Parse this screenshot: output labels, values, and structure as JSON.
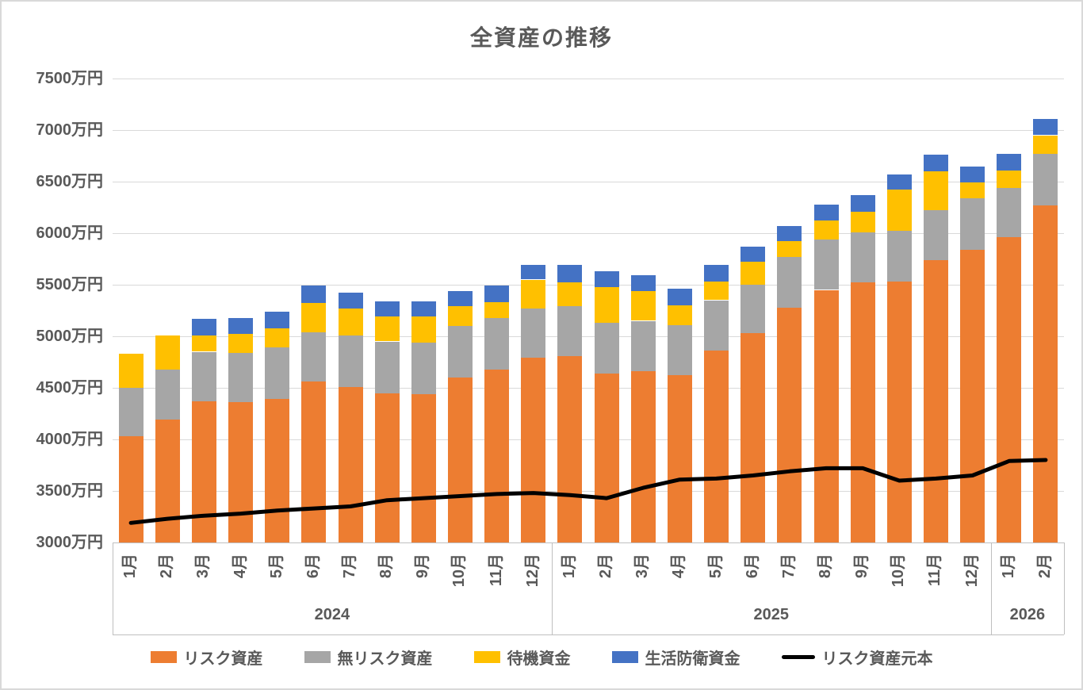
{
  "chart_data": {
    "type": "bar",
    "subtype": "stacked-bar-with-line",
    "title": "全資産の推移",
    "unit": "万円",
    "grid": true,
    "legend_position": "bottom",
    "axis": {
      "y_min": 3000,
      "y_max": 7500,
      "y_ticks": [
        {
          "value": 3000,
          "label": "3000万円"
        },
        {
          "value": 3500,
          "label": "3500万円"
        },
        {
          "value": 4000,
          "label": "4000万円"
        },
        {
          "value": 4500,
          "label": "4500万円"
        },
        {
          "value": 5000,
          "label": "5000万円"
        },
        {
          "value": 5500,
          "label": "5500万円"
        },
        {
          "value": 6000,
          "label": "6000万円"
        },
        {
          "value": 6500,
          "label": "6500万円"
        },
        {
          "value": 7000,
          "label": "7000万円"
        },
        {
          "value": 7500,
          "label": "7500万円"
        }
      ]
    },
    "month_groups": [
      {
        "year": "2024",
        "months": [
          "1月",
          "2月",
          "3月",
          "4月",
          "5月",
          "6月",
          "7月",
          "8月",
          "9月",
          "10月",
          "11月",
          "12月"
        ]
      },
      {
        "year": "2025",
        "months": [
          "1月",
          "2月",
          "3月",
          "4月",
          "5月",
          "6月",
          "7月",
          "8月",
          "9月",
          "10月",
          "11月",
          "12月"
        ]
      },
      {
        "year": "2026",
        "months": [
          "1月",
          "2月"
        ]
      }
    ],
    "series": [
      {
        "name": "リスク資産",
        "render": "bar",
        "color": "#ED7D31",
        "values": [
          4030,
          4190,
          4370,
          4360,
          4390,
          4560,
          4510,
          4450,
          4440,
          4600,
          4680,
          4790,
          4810,
          4640,
          4660,
          4620,
          4860,
          5030,
          5280,
          5450,
          5520,
          5530,
          5740,
          5840,
          5960,
          6270
        ]
      },
      {
        "name": "無リスク資産",
        "render": "bar",
        "color": "#A6A6A6",
        "values": [
          470,
          490,
          480,
          480,
          500,
          480,
          500,
          500,
          500,
          500,
          500,
          480,
          480,
          490,
          490,
          490,
          490,
          470,
          490,
          490,
          490,
          490,
          480,
          500,
          480,
          500
        ]
      },
      {
        "name": "待機資金",
        "render": "bar",
        "color": "#FFC000",
        "values": [
          330,
          330,
          160,
          180,
          190,
          280,
          260,
          240,
          250,
          190,
          150,
          280,
          230,
          350,
          290,
          190,
          180,
          220,
          150,
          180,
          200,
          400,
          380,
          150,
          170,
          180
        ]
      },
      {
        "name": "生活防衛資金",
        "render": "bar",
        "color": "#4472C4",
        "values": [
          0,
          0,
          160,
          160,
          160,
          170,
          150,
          150,
          150,
          150,
          160,
          140,
          170,
          150,
          150,
          160,
          160,
          150,
          150,
          160,
          160,
          150,
          160,
          160,
          160,
          160
        ]
      },
      {
        "name": "リスク資産元本",
        "render": "line",
        "color": "#000000",
        "values": [
          3190,
          3230,
          3260,
          3280,
          3310,
          3330,
          3350,
          3410,
          3430,
          3450,
          3470,
          3480,
          3460,
          3430,
          3530,
          3610,
          3620,
          3650,
          3690,
          3720,
          3720,
          3600,
          3620,
          3650,
          3790,
          3800
        ]
      }
    ],
    "colors": {
      "gridline": "#D9D9D9",
      "axis_line": "#BFBFBF",
      "text": "#595959",
      "background": "#FFFFFF"
    }
  }
}
